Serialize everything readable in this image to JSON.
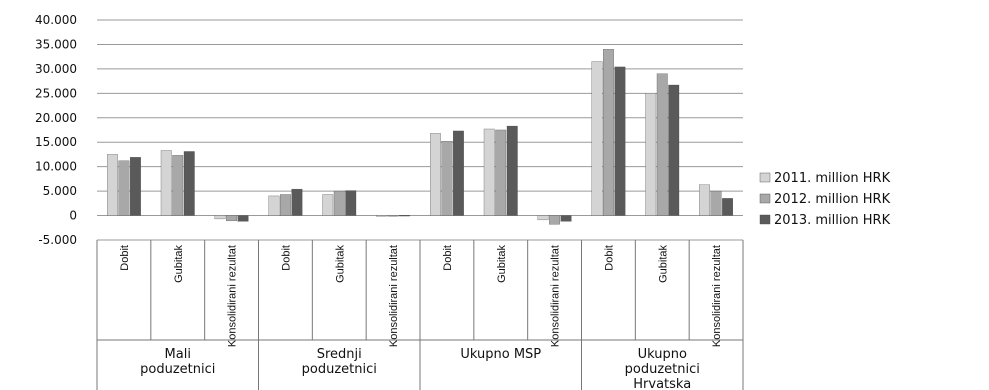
{
  "chart_data": {
    "type": "bar",
    "title": "",
    "xlabel": "",
    "ylabel": "",
    "ylim": [
      -5000,
      40000
    ],
    "yticks": [
      -5000,
      0,
      5000,
      10000,
      15000,
      20000,
      25000,
      30000,
      35000,
      40000
    ],
    "ytick_labels": [
      "-5.000",
      "0",
      "5.000",
      "10.000",
      "15.000",
      "20.000",
      "25.000",
      "30.000",
      "35.000",
      "40.000"
    ],
    "grid": true,
    "legend_position": "right",
    "groups": [
      {
        "label": "Mali poduzetnici",
        "categories": [
          "Dobit",
          "Gubitak",
          "Konsolidirani rezultat"
        ]
      },
      {
        "label": "Srednji poduzetnici",
        "categories": [
          "Dobit",
          "Gubitak",
          "Konsolidirani rezultat"
        ]
      },
      {
        "label": "Ukupno MSP",
        "categories": [
          "Dobit",
          "Gubitak",
          "Konsolidirani rezultat"
        ]
      },
      {
        "label": "Ukupno poduzetnici Hrvatska",
        "categories": [
          "Dobit",
          "Gubitak",
          "Konsolidirani rezultat"
        ]
      }
    ],
    "series": [
      {
        "name": "2011. million HRK",
        "color": "#d4d4d4",
        "values": [
          12500,
          13300,
          -700,
          4000,
          4300,
          -150,
          16800,
          17700,
          -900,
          31500,
          25000,
          6300
        ]
      },
      {
        "name": "2012. million HRK",
        "color": "#a8a8a8",
        "values": [
          11200,
          12300,
          -1100,
          4300,
          5000,
          -150,
          15200,
          17500,
          -1800,
          34000,
          29000,
          5000
        ]
      },
      {
        "name": "2013. million HRK",
        "color": "#5a5a5a",
        "values": [
          11900,
          13100,
          -1200,
          5400,
          5100,
          50,
          17300,
          18300,
          -1200,
          30400,
          26700,
          3500
        ]
      }
    ]
  }
}
